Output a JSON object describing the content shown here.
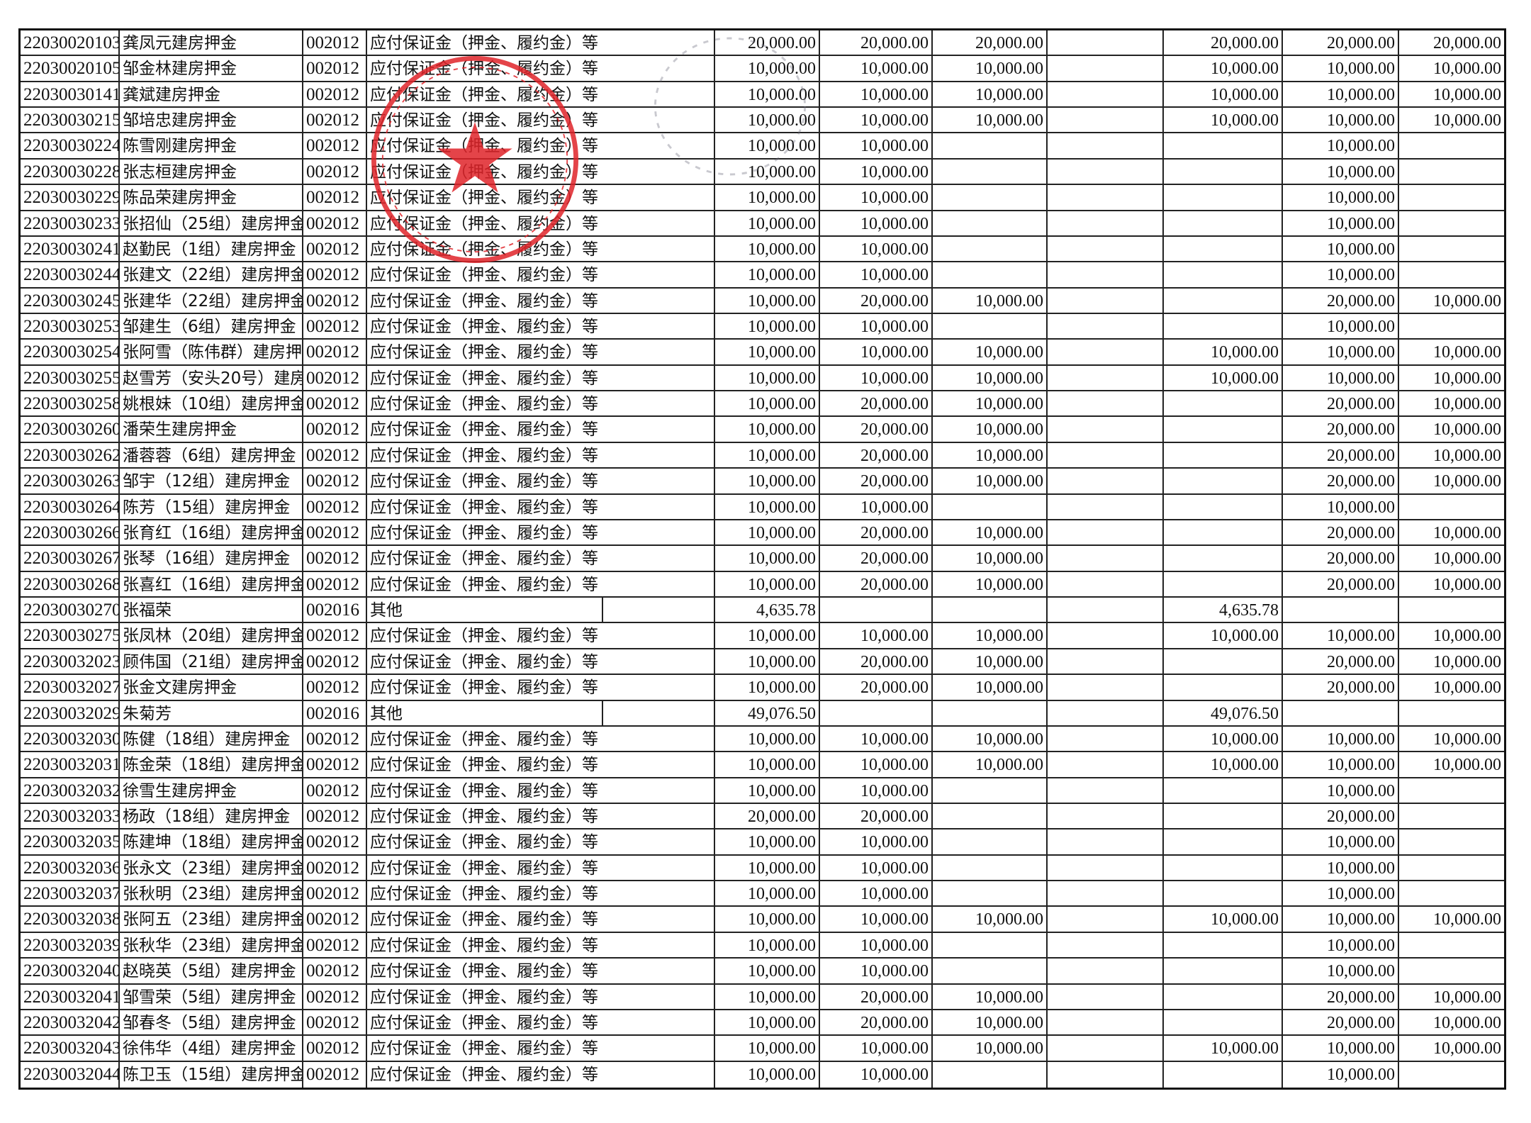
{
  "document": {
    "type_labels": {
      "deposit": "应付保证金（押金、履约金）等",
      "other": "其他"
    },
    "colors": {
      "ink": "#111111",
      "seal": "#e0242a"
    },
    "seal_icon": "red-official-seal-star",
    "rows": [
      {
        "code": "22030020103",
        "name": "龚凤元建房押金",
        "account": "002012",
        "type": "应付保证金（押金、履约金）等",
        "c1": "20,000.00",
        "c2": "20,000.00",
        "c3": "20,000.00",
        "c4": "",
        "c5": "20,000.00",
        "c6": "20,000.00",
        "c7": "20,000.00"
      },
      {
        "code": "22030020105",
        "name": "邹金林建房押金",
        "account": "002012",
        "type": "应付保证金（押金、履约金）等",
        "c1": "10,000.00",
        "c2": "10,000.00",
        "c3": "10,000.00",
        "c4": "",
        "c5": "10,000.00",
        "c6": "10,000.00",
        "c7": "10,000.00"
      },
      {
        "code": "22030030141",
        "name": "龚斌建房押金",
        "account": "002012",
        "type": "应付保证金（押金、履约金）等",
        "c1": "10,000.00",
        "c2": "10,000.00",
        "c3": "10,000.00",
        "c4": "",
        "c5": "10,000.00",
        "c6": "10,000.00",
        "c7": "10,000.00"
      },
      {
        "code": "22030030215",
        "name": "邹培忠建房押金",
        "account": "002012",
        "type": "应付保证金（押金、履约金）等",
        "c1": "10,000.00",
        "c2": "10,000.00",
        "c3": "10,000.00",
        "c4": "",
        "c5": "10,000.00",
        "c6": "10,000.00",
        "c7": "10,000.00"
      },
      {
        "code": "22030030224",
        "name": "陈雪刚建房押金",
        "account": "002012",
        "type": "应付保证金（押金、履约金）等",
        "c1": "10,000.00",
        "c2": "10,000.00",
        "c3": "",
        "c4": "",
        "c5": "",
        "c6": "10,000.00",
        "c7": ""
      },
      {
        "code": "22030030228",
        "name": "张志桓建房押金",
        "account": "002012",
        "type": "应付保证金（押金、履约金）等",
        "c1": "10,000.00",
        "c2": "10,000.00",
        "c3": "",
        "c4": "",
        "c5": "",
        "c6": "10,000.00",
        "c7": ""
      },
      {
        "code": "22030030229",
        "name": "陈品荣建房押金",
        "account": "002012",
        "type": "应付保证金（押金、履约金）等",
        "c1": "10,000.00",
        "c2": "10,000.00",
        "c3": "",
        "c4": "",
        "c5": "",
        "c6": "10,000.00",
        "c7": ""
      },
      {
        "code": "22030030233",
        "name": "张招仙（25组）建房押金",
        "account": "002012",
        "type": "应付保证金（押金、履约金）等",
        "c1": "10,000.00",
        "c2": "10,000.00",
        "c3": "",
        "c4": "",
        "c5": "",
        "c6": "10,000.00",
        "c7": ""
      },
      {
        "code": "22030030241",
        "name": "赵勤民（1组）建房押金",
        "account": "002012",
        "type": "应付保证金（押金、履约金）等",
        "c1": "10,000.00",
        "c2": "10,000.00",
        "c3": "",
        "c4": "",
        "c5": "",
        "c6": "10,000.00",
        "c7": ""
      },
      {
        "code": "22030030244",
        "name": "张建文（22组）建房押金",
        "account": "002012",
        "type": "应付保证金（押金、履约金）等",
        "c1": "10,000.00",
        "c2": "10,000.00",
        "c3": "",
        "c4": "",
        "c5": "",
        "c6": "10,000.00",
        "c7": ""
      },
      {
        "code": "22030030245",
        "name": "张建华（22组）建房押金",
        "account": "002012",
        "type": "应付保证金（押金、履约金）等",
        "c1": "10,000.00",
        "c2": "20,000.00",
        "c3": "10,000.00",
        "c4": "",
        "c5": "",
        "c6": "20,000.00",
        "c7": "10,000.00"
      },
      {
        "code": "22030030253",
        "name": "邹建生（6组）建房押金",
        "account": "002012",
        "type": "应付保证金（押金、履约金）等",
        "c1": "10,000.00",
        "c2": "10,000.00",
        "c3": "",
        "c4": "",
        "c5": "",
        "c6": "10,000.00",
        "c7": ""
      },
      {
        "code": "22030030254",
        "name": "张阿雪（陈伟群）建房押",
        "account": "002012",
        "type": "应付保证金（押金、履约金）等",
        "c1": "10,000.00",
        "c2": "10,000.00",
        "c3": "10,000.00",
        "c4": "",
        "c5": "10,000.00",
        "c6": "10,000.00",
        "c7": "10,000.00"
      },
      {
        "code": "22030030255",
        "name": "赵雪芳（安头20号）建房",
        "account": "002012",
        "type": "应付保证金（押金、履约金）等",
        "c1": "10,000.00",
        "c2": "10,000.00",
        "c3": "10,000.00",
        "c4": "",
        "c5": "10,000.00",
        "c6": "10,000.00",
        "c7": "10,000.00"
      },
      {
        "code": "22030030258",
        "name": "姚根妹（10组）建房押金",
        "account": "002012",
        "type": "应付保证金（押金、履约金）等",
        "c1": "10,000.00",
        "c2": "20,000.00",
        "c3": "10,000.00",
        "c4": "",
        "c5": "",
        "c6": "20,000.00",
        "c7": "10,000.00"
      },
      {
        "code": "22030030260",
        "name": "潘荣生建房押金",
        "account": "002012",
        "type": "应付保证金（押金、履约金）等",
        "c1": "10,000.00",
        "c2": "20,000.00",
        "c3": "10,000.00",
        "c4": "",
        "c5": "",
        "c6": "20,000.00",
        "c7": "10,000.00"
      },
      {
        "code": "22030030262",
        "name": "潘蓉蓉（6组）建房押金",
        "account": "002012",
        "type": "应付保证金（押金、履约金）等",
        "c1": "10,000.00",
        "c2": "20,000.00",
        "c3": "10,000.00",
        "c4": "",
        "c5": "",
        "c6": "20,000.00",
        "c7": "10,000.00"
      },
      {
        "code": "22030030263",
        "name": "邹宇（12组）建房押金",
        "account": "002012",
        "type": "应付保证金（押金、履约金）等",
        "c1": "10,000.00",
        "c2": "20,000.00",
        "c3": "10,000.00",
        "c4": "",
        "c5": "",
        "c6": "20,000.00",
        "c7": "10,000.00"
      },
      {
        "code": "22030030264",
        "name": "陈芳（15组）建房押金",
        "account": "002012",
        "type": "应付保证金（押金、履约金）等",
        "c1": "10,000.00",
        "c2": "10,000.00",
        "c3": "",
        "c4": "",
        "c5": "",
        "c6": "10,000.00",
        "c7": ""
      },
      {
        "code": "22030030266",
        "name": "张育红（16组）建房押金",
        "account": "002012",
        "type": "应付保证金（押金、履约金）等",
        "c1": "10,000.00",
        "c2": "20,000.00",
        "c3": "10,000.00",
        "c4": "",
        "c5": "",
        "c6": "20,000.00",
        "c7": "10,000.00"
      },
      {
        "code": "22030030267",
        "name": "张琴（16组）建房押金",
        "account": "002012",
        "type": "应付保证金（押金、履约金）等",
        "c1": "10,000.00",
        "c2": "20,000.00",
        "c3": "10,000.00",
        "c4": "",
        "c5": "",
        "c6": "20,000.00",
        "c7": "10,000.00"
      },
      {
        "code": "22030030268",
        "name": "张喜红（16组）建房押金",
        "account": "002012",
        "type": "应付保证金（押金、履约金）等",
        "c1": "10,000.00",
        "c2": "20,000.00",
        "c3": "10,000.00",
        "c4": "",
        "c5": "",
        "c6": "20,000.00",
        "c7": "10,000.00"
      },
      {
        "code": "22030030270",
        "name": "张福荣",
        "account": "002016",
        "type": "其他",
        "c1": "4,635.78",
        "c2": "",
        "c3": "",
        "c4": "",
        "c5": "4,635.78",
        "c6": "",
        "c7": ""
      },
      {
        "code": "22030030275",
        "name": "张凤林（20组）建房押金",
        "account": "002012",
        "type": "应付保证金（押金、履约金）等",
        "c1": "10,000.00",
        "c2": "10,000.00",
        "c3": "10,000.00",
        "c4": "",
        "c5": "10,000.00",
        "c6": "10,000.00",
        "c7": "10,000.00"
      },
      {
        "code": "22030032023",
        "name": "顾伟国（21组）建房押金",
        "account": "002012",
        "type": "应付保证金（押金、履约金）等",
        "c1": "10,000.00",
        "c2": "20,000.00",
        "c3": "10,000.00",
        "c4": "",
        "c5": "",
        "c6": "20,000.00",
        "c7": "10,000.00"
      },
      {
        "code": "22030032027",
        "name": "张金文建房押金",
        "account": "002012",
        "type": "应付保证金（押金、履约金）等",
        "c1": "10,000.00",
        "c2": "20,000.00",
        "c3": "10,000.00",
        "c4": "",
        "c5": "",
        "c6": "20,000.00",
        "c7": "10,000.00"
      },
      {
        "code": "22030032029",
        "name": "朱菊芳",
        "account": "002016",
        "type": "其他",
        "c1": "49,076.50",
        "c2": "",
        "c3": "",
        "c4": "",
        "c5": "49,076.50",
        "c6": "",
        "c7": ""
      },
      {
        "code": "22030032030",
        "name": "陈健（18组）建房押金",
        "account": "002012",
        "type": "应付保证金（押金、履约金）等",
        "c1": "10,000.00",
        "c2": "10,000.00",
        "c3": "10,000.00",
        "c4": "",
        "c5": "10,000.00",
        "c6": "10,000.00",
        "c7": "10,000.00"
      },
      {
        "code": "22030032031",
        "name": "陈金荣（18组）建房押金",
        "account": "002012",
        "type": "应付保证金（押金、履约金）等",
        "c1": "10,000.00",
        "c2": "10,000.00",
        "c3": "10,000.00",
        "c4": "",
        "c5": "10,000.00",
        "c6": "10,000.00",
        "c7": "10,000.00"
      },
      {
        "code": "22030032032",
        "name": "徐雪生建房押金",
        "account": "002012",
        "type": "应付保证金（押金、履约金）等",
        "c1": "10,000.00",
        "c2": "10,000.00",
        "c3": "",
        "c4": "",
        "c5": "",
        "c6": "10,000.00",
        "c7": ""
      },
      {
        "code": "22030032033",
        "name": "杨政（18组）建房押金",
        "account": "002012",
        "type": "应付保证金（押金、履约金）等",
        "c1": "20,000.00",
        "c2": "20,000.00",
        "c3": "",
        "c4": "",
        "c5": "",
        "c6": "20,000.00",
        "c7": ""
      },
      {
        "code": "22030032035",
        "name": "陈建坤（18组）建房押金",
        "account": "002012",
        "type": "应付保证金（押金、履约金）等",
        "c1": "10,000.00",
        "c2": "10,000.00",
        "c3": "",
        "c4": "",
        "c5": "",
        "c6": "10,000.00",
        "c7": ""
      },
      {
        "code": "22030032036",
        "name": "张永文（23组）建房押金",
        "account": "002012",
        "type": "应付保证金（押金、履约金）等",
        "c1": "10,000.00",
        "c2": "10,000.00",
        "c3": "",
        "c4": "",
        "c5": "",
        "c6": "10,000.00",
        "c7": ""
      },
      {
        "code": "22030032037",
        "name": "张秋明（23组）建房押金",
        "account": "002012",
        "type": "应付保证金（押金、履约金）等",
        "c1": "10,000.00",
        "c2": "10,000.00",
        "c3": "",
        "c4": "",
        "c5": "",
        "c6": "10,000.00",
        "c7": ""
      },
      {
        "code": "22030032038",
        "name": "张阿五（23组）建房押金",
        "account": "002012",
        "type": "应付保证金（押金、履约金）等",
        "c1": "10,000.00",
        "c2": "10,000.00",
        "c3": "10,000.00",
        "c4": "",
        "c5": "10,000.00",
        "c6": "10,000.00",
        "c7": "10,000.00"
      },
      {
        "code": "22030032039",
        "name": "张秋华（23组）建房押金",
        "account": "002012",
        "type": "应付保证金（押金、履约金）等",
        "c1": "10,000.00",
        "c2": "10,000.00",
        "c3": "",
        "c4": "",
        "c5": "",
        "c6": "10,000.00",
        "c7": ""
      },
      {
        "code": "22030032040",
        "name": "赵晓英（5组）建房押金",
        "account": "002012",
        "type": "应付保证金（押金、履约金）等",
        "c1": "10,000.00",
        "c2": "10,000.00",
        "c3": "",
        "c4": "",
        "c5": "",
        "c6": "10,000.00",
        "c7": ""
      },
      {
        "code": "22030032041",
        "name": "邹雪荣（5组）建房押金",
        "account": "002012",
        "type": "应付保证金（押金、履约金）等",
        "c1": "10,000.00",
        "c2": "20,000.00",
        "c3": "10,000.00",
        "c4": "",
        "c5": "",
        "c6": "20,000.00",
        "c7": "10,000.00"
      },
      {
        "code": "22030032042",
        "name": "邹春冬（5组）建房押金",
        "account": "002012",
        "type": "应付保证金（押金、履约金）等",
        "c1": "10,000.00",
        "c2": "20,000.00",
        "c3": "10,000.00",
        "c4": "",
        "c5": "",
        "c6": "20,000.00",
        "c7": "10,000.00"
      },
      {
        "code": "22030032043",
        "name": "徐伟华（4组）建房押金",
        "account": "002012",
        "type": "应付保证金（押金、履约金）等",
        "c1": "10,000.00",
        "c2": "10,000.00",
        "c3": "10,000.00",
        "c4": "",
        "c5": "10,000.00",
        "c6": "10,000.00",
        "c7": "10,000.00"
      },
      {
        "code": "22030032044",
        "name": "陈卫玉（15组）建房押金",
        "account": "002012",
        "type": "应付保证金（押金、履约金）等",
        "c1": "10,000.00",
        "c2": "10,000.00",
        "c3": "",
        "c4": "",
        "c5": "",
        "c6": "10,000.00",
        "c7": ""
      }
    ]
  }
}
